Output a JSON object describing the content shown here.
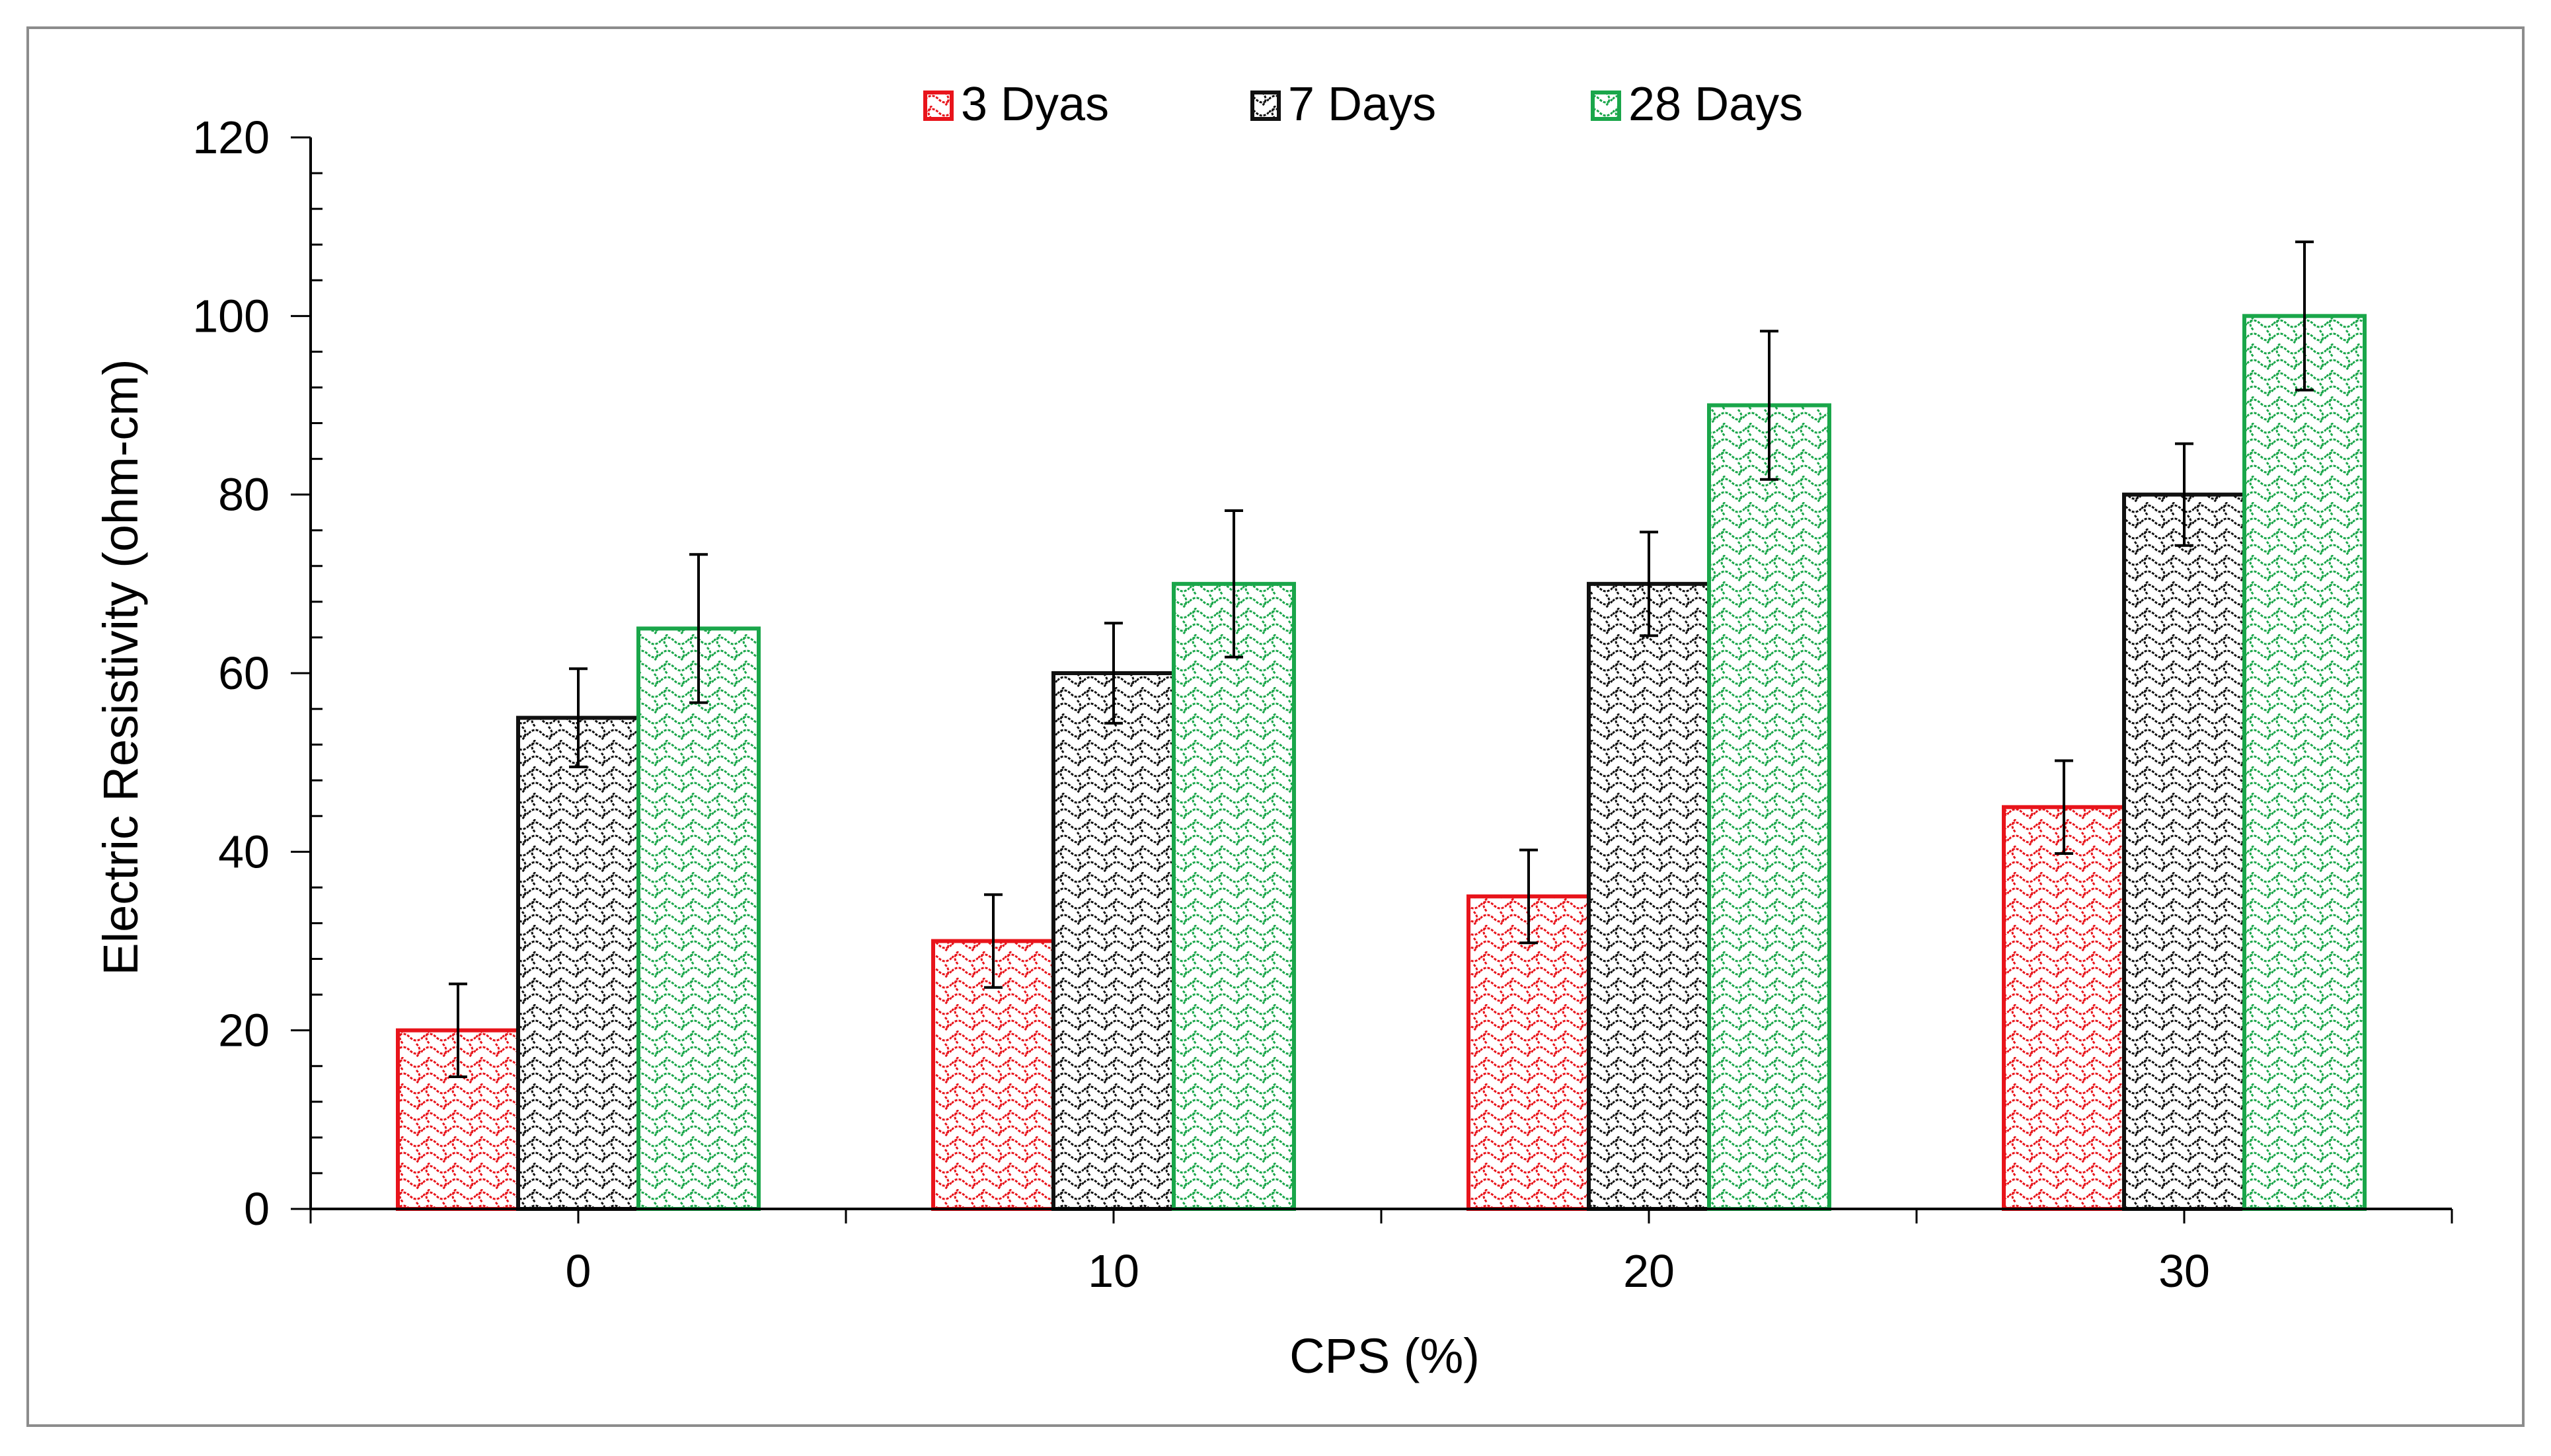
{
  "chart_data": {
    "type": "bar",
    "title": "",
    "xlabel": "CPS (%)",
    "ylabel": "Electric Resistivity (ohm-cm)",
    "categories": [
      "0",
      "10",
      "20",
      "30"
    ],
    "ylim": [
      0,
      120
    ],
    "yticks": [
      0,
      20,
      40,
      60,
      80,
      100,
      120
    ],
    "grid": false,
    "legend_position": "top-center",
    "series": [
      {
        "name": "3 Dyas",
        "color": "#e8141b",
        "values": [
          20,
          30,
          35,
          45
        ],
        "errors": [
          5.2,
          5.2,
          5.2,
          5.2
        ]
      },
      {
        "name": "7 Days",
        "color": "#111111",
        "values": [
          55,
          60,
          70,
          80
        ],
        "errors": [
          5.5,
          5.6,
          5.8,
          5.7
        ]
      },
      {
        "name": "28 Days",
        "color": "#1aa64a",
        "values": [
          65,
          70,
          90,
          100
        ],
        "errors": [
          8.3,
          8.2,
          8.3,
          8.3
        ]
      }
    ]
  }
}
